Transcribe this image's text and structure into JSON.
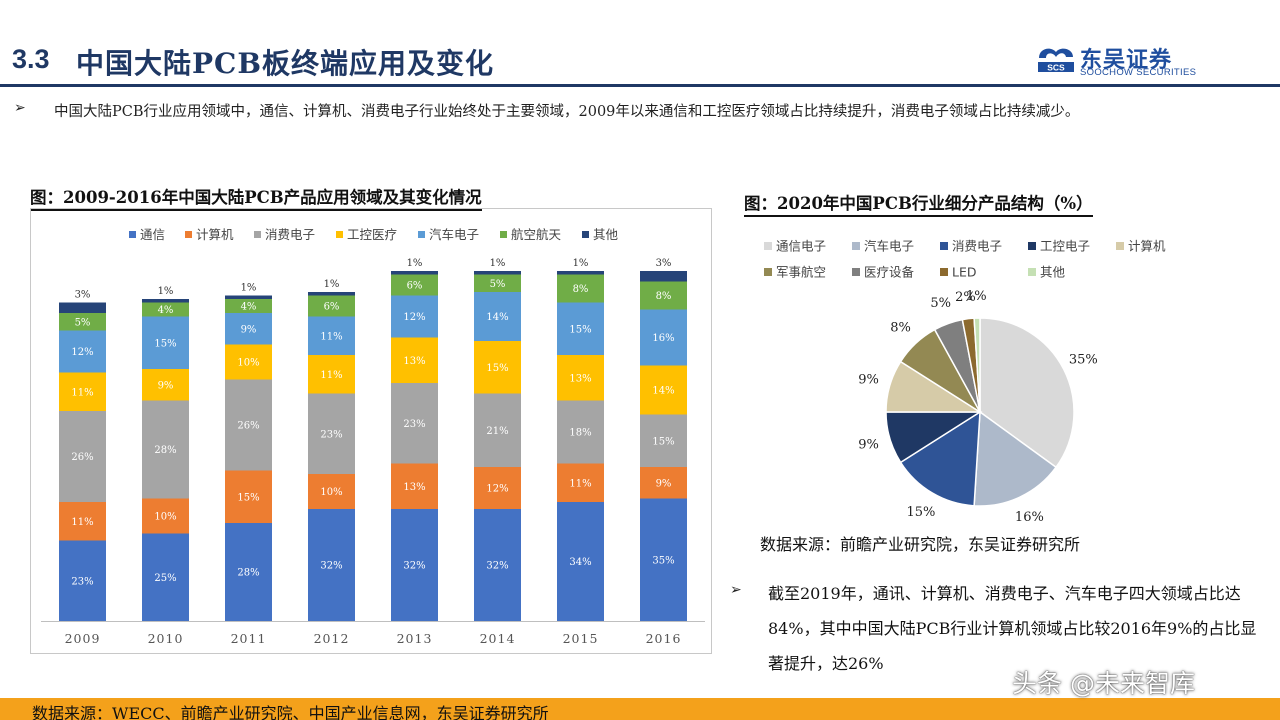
{
  "header": {
    "section_number": "3.3",
    "title": "中国大陆PCB板终端应用及变化",
    "logo_cn": "东吴证券",
    "logo_en": "SOOCHOW SECURITIES",
    "logo_mark_text": "SCS"
  },
  "intro_bullet": "中国大陆PCB行业应用领域中，通信、计算机、消费电子行业始终处于主要领域，2009年以来通信和工控医疗领域占比持续提升，消费电子领域占比持续减少。",
  "left_chart_heading": "图：2009-2016年中国大陆PCB产品应用领域及其变化情况",
  "right_chart_heading": "图：2020年中国PCB行业细分产品结构（%）",
  "right_source": "数据来源：前瞻产业研究院，东吴证券研究所",
  "right_bullet": "截至2019年，通讯、计算机、消费电子、汽车电子四大领域占比达84%，其中中国大陆PCB行业计算机领域占比较2016年9%的占比显著提升，达26%",
  "footer_source": "数据来源：WECC、前瞻产业研究院、中国产业信息网，东吴证券研究所",
  "watermark": "头条 @未来智库",
  "colors": {
    "title": "#1f3864",
    "footer": "#f4a11b"
  },
  "chart_data": [
    {
      "type": "bar",
      "stacked": true,
      "title": "图：2009-2016年中国大陆PCB产品应用领域及其变化情况",
      "categories": [
        "2009",
        "2010",
        "2011",
        "2012",
        "2013",
        "2014",
        "2015",
        "2016"
      ],
      "ylim": [
        0,
        100
      ],
      "legend_position": "top",
      "series": [
        {
          "name": "通信",
          "color": "#4472c4",
          "values": [
            23,
            25,
            28,
            32,
            32,
            32,
            34,
            35
          ]
        },
        {
          "name": "计算机",
          "color": "#ed7d31",
          "values": [
            11,
            10,
            15,
            10,
            13,
            12,
            11,
            9
          ]
        },
        {
          "name": "消费电子",
          "color": "#a5a5a5",
          "values": [
            26,
            28,
            26,
            23,
            23,
            21,
            18,
            15
          ]
        },
        {
          "name": "工控医疗",
          "color": "#ffc000",
          "values": [
            11,
            9,
            10,
            11,
            13,
            15,
            13,
            14
          ]
        },
        {
          "name": "汽车电子",
          "color": "#5b9bd5",
          "values": [
            12,
            15,
            9,
            11,
            12,
            14,
            15,
            16
          ]
        },
        {
          "name": "航空航天",
          "color": "#70ad47",
          "values": [
            5,
            4,
            4,
            6,
            6,
            5,
            8,
            8
          ]
        },
        {
          "name": "其他",
          "color": "#264478",
          "values": [
            3,
            1,
            1,
            1,
            1,
            1,
            1,
            3
          ]
        }
      ]
    },
    {
      "type": "pie",
      "title": "图：2020年中国PCB行业细分产品结构（%）",
      "legend_position": "top",
      "slices": [
        {
          "name": "通信电子",
          "value": 35,
          "label": "35%",
          "color": "#d9d9d9"
        },
        {
          "name": "汽车电子",
          "value": 16,
          "label": "16%",
          "color": "#adb9ca"
        },
        {
          "name": "消费电子",
          "value": 15,
          "label": "15%",
          "color": "#2f5496"
        },
        {
          "name": "工控电子",
          "value": 9,
          "label": "9%",
          "color": "#1f3864"
        },
        {
          "name": "计算机",
          "value": 9,
          "label": "9%",
          "color": "#d6cba8"
        },
        {
          "name": "军事航空",
          "value": 8,
          "label": "8%",
          "color": "#938953"
        },
        {
          "name": "医疗设备",
          "value": 5,
          "label": "5%",
          "color": "#7f7f7f"
        },
        {
          "name": "LED",
          "value": 2,
          "label": "2%",
          "color": "#8c6a2e"
        },
        {
          "name": "其他",
          "value": 1,
          "label": "1%",
          "color": "#c5e0b4"
        }
      ]
    }
  ]
}
